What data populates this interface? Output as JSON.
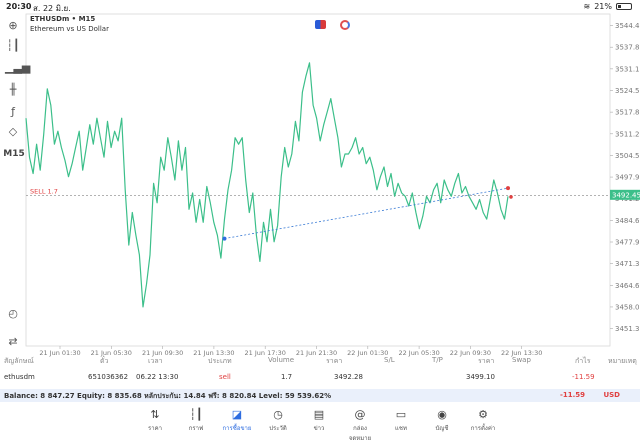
{
  "status_bar": {
    "time": "20:30",
    "date": "ส. 22 มิ.ย.",
    "battery": "21%"
  },
  "toolbar": {
    "timeframe": "M15"
  },
  "chart_header": {
    "symbol": "ETHUSDm • M15",
    "description": "Ethereum vs US Dollar"
  },
  "chart_data": {
    "type": "line",
    "y_ticks": [
      3544.45,
      3537.8,
      3531.15,
      3524.5,
      3517.85,
      3511.2,
      3504.55,
      3497.9,
      3491.25,
      3484.6,
      3477.95,
      3471.3,
      3464.65,
      3458.0,
      3451.35
    ],
    "ylim": [
      3446.0,
      3548.0
    ],
    "x_ticks": [
      "21 Jun 01:30",
      "21 Jun 05:30",
      "21 Jun 09:30",
      "21 Jun 13:30",
      "21 Jun 17:30",
      "21 Jun 21:30",
      "22 Jun 01:30",
      "22 Jun 05:30",
      "22 Jun 09:30",
      "22 Jun 13:30"
    ],
    "current_price": "3492.45",
    "order_line": {
      "label": "SELL 1.7",
      "price": 3492.28
    },
    "series": [
      {
        "x": [
          0,
          0.5,
          1,
          1.5,
          2,
          2.5,
          3,
          3.5,
          4,
          4.5,
          5,
          5.5,
          6,
          6.5,
          7,
          7.5,
          8,
          8.5,
          9,
          9.5,
          10,
          10.5,
          11,
          11.5,
          12,
          12.5,
          13,
          13.5,
          14,
          14.5,
          15,
          15.5,
          16,
          16.5,
          17,
          17.5,
          18,
          18.5,
          19,
          19.5,
          20,
          20.5,
          21,
          21.5,
          22,
          22.5,
          23,
          23.5,
          24,
          24.5,
          25,
          25.5,
          26,
          26.5,
          27,
          27.5,
          28,
          28.5,
          29,
          29.5,
          30,
          30.5,
          31,
          31.5,
          32,
          32.5,
          33,
          33.5,
          34,
          34.5,
          35,
          35.5,
          36,
          36.5,
          37,
          37.5,
          38,
          38.5,
          39,
          39.5,
          40,
          40.5,
          41,
          41.5,
          42,
          42.5,
          43,
          43.5,
          44,
          44.5,
          45,
          45.5,
          46,
          46.5,
          47,
          47.5,
          48,
          48.5,
          49,
          49.5,
          50,
          50.5,
          51,
          51.5,
          52,
          52.5,
          53,
          53.5,
          54,
          54.5,
          55,
          55.5,
          56,
          56.5,
          57,
          57.5,
          58,
          58.5,
          59,
          59.5,
          60,
          60.5,
          61,
          61.5,
          62,
          62.5,
          63,
          63.5,
          64,
          64.5,
          65,
          65.5,
          66,
          66.5,
          67,
          67.5,
          68
        ],
        "values": [
          3516,
          3504,
          3499,
          3508,
          3500,
          3511,
          3525,
          3520,
          3508,
          3512,
          3507,
          3503,
          3498,
          3502,
          3507,
          3512,
          3500,
          3507,
          3514,
          3508,
          3516,
          3510,
          3504,
          3515,
          3507,
          3512,
          3509,
          3516,
          3494,
          3477,
          3487,
          3480,
          3474,
          3458,
          3465,
          3474,
          3496,
          3490,
          3504,
          3500,
          3510,
          3504,
          3497,
          3509,
          3500,
          3507,
          3488,
          3493,
          3484,
          3491,
          3484,
          3495,
          3490,
          3484,
          3480,
          3473,
          3485,
          3494,
          3500,
          3510,
          3508,
          3510,
          3497,
          3487,
          3493,
          3480,
          3472,
          3484,
          3478,
          3488,
          3478,
          3483,
          3498,
          3507,
          3501,
          3505,
          3515,
          3509,
          3524,
          3529,
          3533,
          3520,
          3516,
          3509,
          3514,
          3518,
          3522,
          3516,
          3510,
          3501,
          3505,
          3505,
          3507,
          3510,
          3505,
          3507,
          3502,
          3504,
          3500,
          3494,
          3498,
          3501,
          3495,
          3499,
          3492,
          3496,
          3493,
          3492,
          3489,
          3493,
          3487,
          3482,
          3486,
          3492,
          3490,
          3494,
          3496,
          3490,
          3497,
          3494,
          3492,
          3496,
          3499,
          3493,
          3495,
          3492,
          3490,
          3488,
          3491,
          3487,
          3485,
          3491,
          3497,
          3493,
          3488,
          3485,
          3492
        ]
      }
    ]
  },
  "positions": {
    "headers": {
      "symbol": "สัญลักษณ์",
      "ticket": "ตั๋ว",
      "time": "เวลา",
      "type": "ประเภท",
      "volume": "Volume",
      "price": "ราคา",
      "sl": "S/L",
      "tp": "T/P",
      "price2": "ราคา",
      "swap": "Swap",
      "profit": "กำไร",
      "comment": "หมายเหตุ"
    },
    "row": {
      "symbol": "ethusdm",
      "ticket": "651036362",
      "time": "06.22 13:30",
      "type": "sell",
      "volume": "1.7",
      "open_price": "3492.28",
      "sl": "",
      "tp": "",
      "current_price": "3499.10",
      "swap": "",
      "profit": "-11.59",
      "comment": ""
    }
  },
  "balance_bar": {
    "text": "Balance: 8 847.27 Equity: 8 835.68 หลักประกัน: 14.84 ฟรี: 8 820.84 Level: 59 539.62%",
    "profit": "-11.59",
    "currency": "USD"
  },
  "tabs": [
    {
      "label": "ราคา",
      "icon": "swap-vertical-icon"
    },
    {
      "label": "กราฟ",
      "icon": "candlestick-icon"
    },
    {
      "label": "การซื้อขาย",
      "icon": "trade-chart-icon"
    },
    {
      "label": "ประวัติ",
      "icon": "history-icon"
    },
    {
      "label": "ข่าว",
      "icon": "news-icon"
    },
    {
      "label": "กล่องจดหมาย",
      "icon": "mailbox-icon"
    },
    {
      "label": "แชท",
      "icon": "chat-icon"
    },
    {
      "label": "บัญชี",
      "icon": "account-icon"
    },
    {
      "label": "การตั้งค่า",
      "icon": "settings-icon"
    }
  ],
  "colors": {
    "line": "#3cbf8a",
    "accent": "#2e6de0",
    "loss": "#e04040",
    "grid": "#ececec"
  }
}
